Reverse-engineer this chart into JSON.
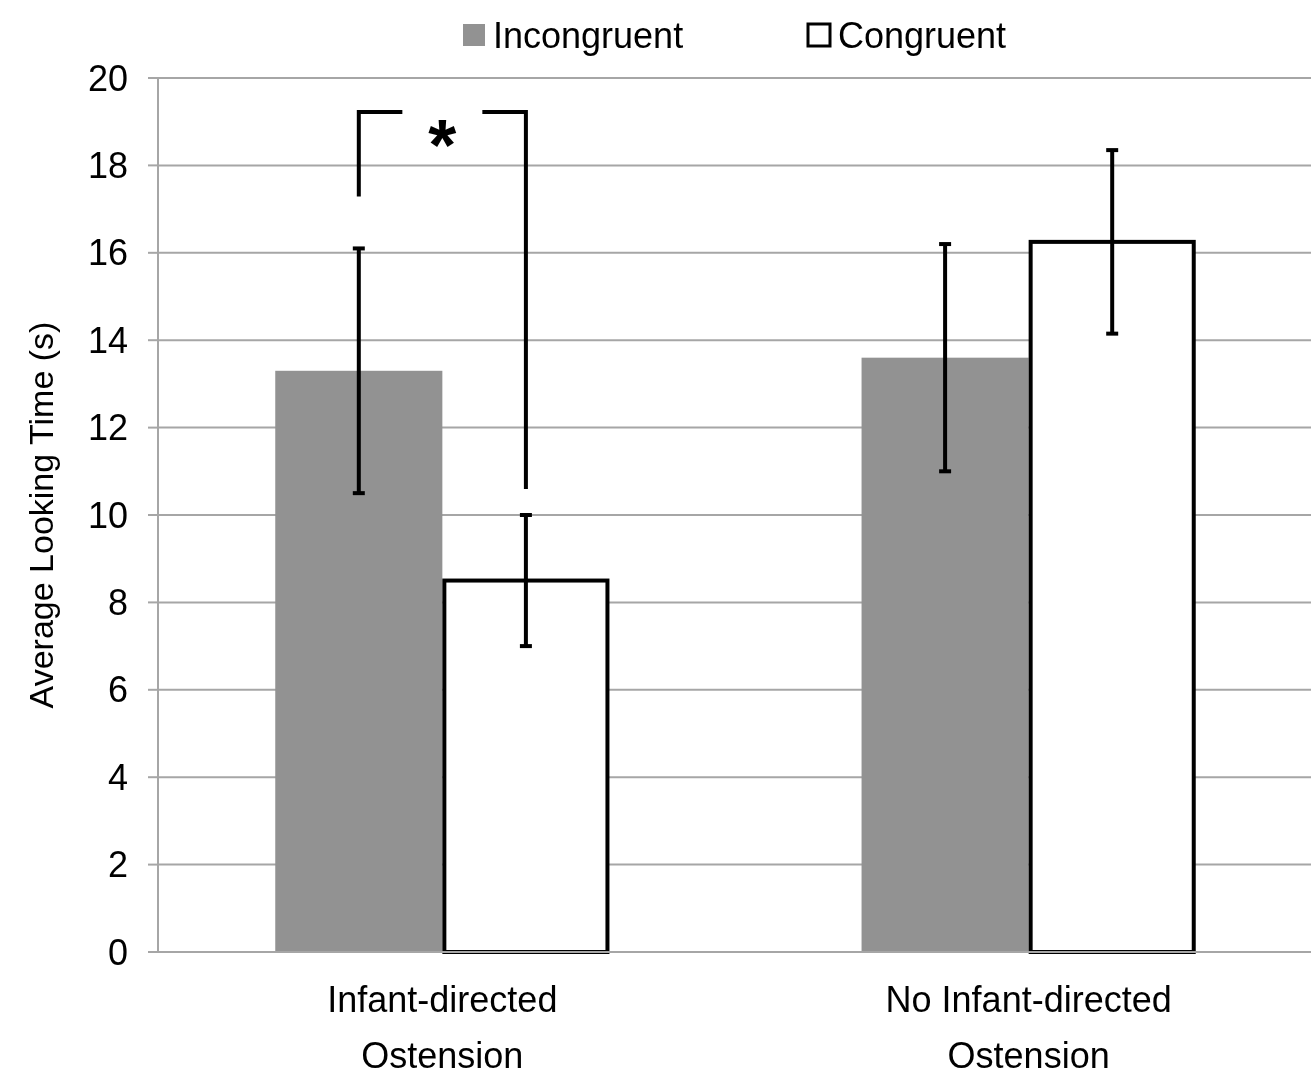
{
  "chart_data": {
    "type": "bar",
    "ylabel": "Average Looking Time (s)",
    "categories": [
      "Infant-directed Ostension",
      "No Infant-directed Ostension"
    ],
    "series": [
      {
        "name": "Incongruent",
        "color": "#929292",
        "values": [
          13.3,
          13.6
        ],
        "errors": [
          2.8,
          2.6
        ]
      },
      {
        "name": "Congruent",
        "color": "#ffffff",
        "values": [
          8.5,
          16.25
        ],
        "errors": [
          1.5,
          2.1
        ]
      }
    ],
    "ylim": [
      0,
      20
    ],
    "yticks": [
      0,
      2,
      4,
      6,
      8,
      10,
      12,
      14,
      16,
      18,
      20
    ],
    "grid": "y",
    "legend": "top",
    "annotations": [
      "*"
    ]
  }
}
